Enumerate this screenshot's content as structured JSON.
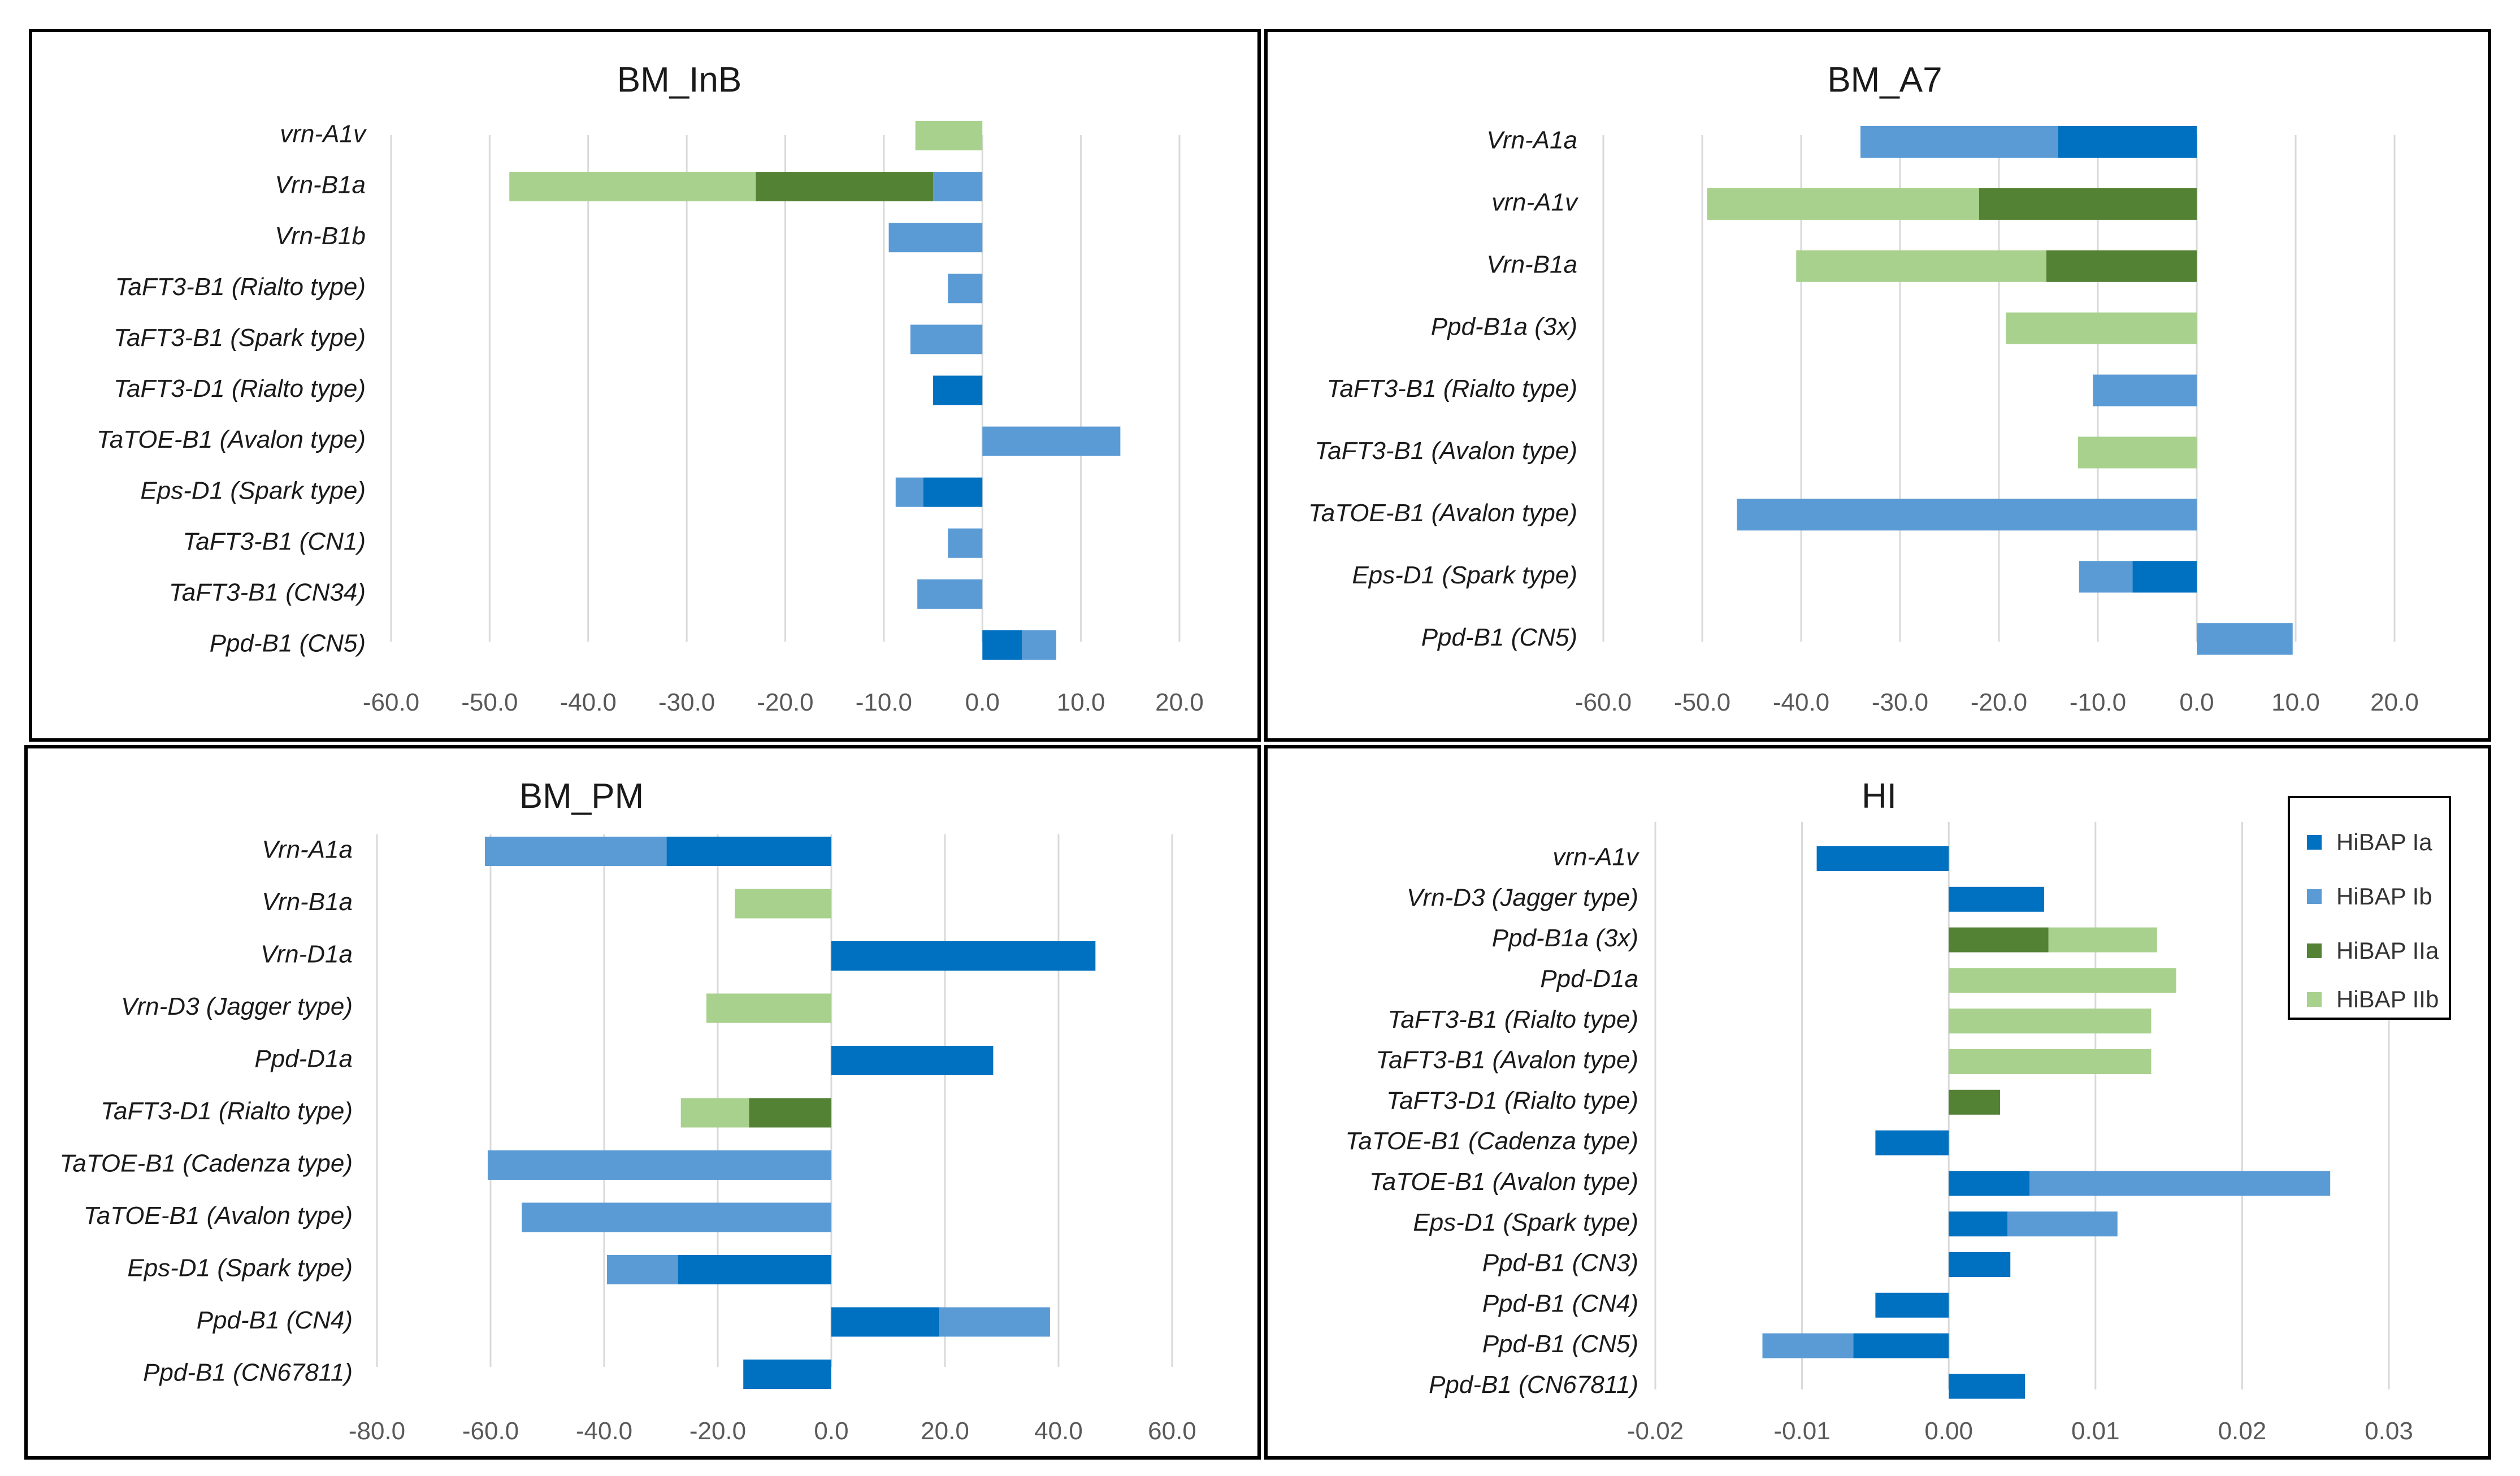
{
  "colors": {
    "HiBAP Ia": "#0070c0",
    "HiBAP Ib": "#5b9bd5",
    "HiBAP IIa": "#548235",
    "HiBAP IIb": "#a9d18e"
  },
  "legend": {
    "items": [
      {
        "label": "HiBAP Ia"
      },
      {
        "label": "HiBAP Ib"
      },
      {
        "label": "HiBAP IIa"
      },
      {
        "label": "HiBAP IIb"
      }
    ]
  },
  "chart_data": [
    {
      "type": "bar",
      "orientation": "horizontal",
      "stacked": true,
      "title": "BM_InB",
      "xlim": [
        -60,
        20
      ],
      "ticks": [
        -60,
        -50,
        -40,
        -30,
        -20,
        -10,
        0,
        10,
        20
      ],
      "tick_labels": [
        "-60.0",
        "-50.0",
        "-40.0",
        "-30.0",
        "-20.0",
        "-10.0",
        "0.0",
        "10.0",
        "20.0"
      ],
      "categories": [
        "vrn-A1v",
        "Vrn-B1a",
        "Vrn-B1b",
        "TaFT3-B1 (Rialto type)",
        "TaFT3-B1 (Spark type)",
        "TaFT3-D1 (Rialto type)",
        "TaTOE-B1 (Avalon type)",
        "Eps-D1 (Spark type)",
        "TaFT3-B1 (CN1)",
        "TaFT3-B1 (CN34)",
        "Ppd-B1 (CN5)"
      ],
      "series": [
        {
          "name": "HiBAP Ia",
          "values": [
            0,
            0,
            0,
            0,
            0,
            -5.0,
            0,
            -6.0,
            0,
            0,
            4.0
          ]
        },
        {
          "name": "HiBAP Ib",
          "values": [
            0,
            -5.0,
            -9.5,
            -3.5,
            -7.3,
            0,
            14.0,
            -2.8,
            -3.5,
            -6.6,
            3.5
          ]
        },
        {
          "name": "HiBAP IIa",
          "values": [
            0,
            -18.0,
            0,
            0,
            0,
            0,
            0,
            0,
            0,
            0,
            0
          ]
        },
        {
          "name": "HiBAP IIb",
          "values": [
            -6.8,
            -25.0,
            0,
            0,
            0,
            0,
            0,
            0,
            0,
            0,
            0
          ]
        }
      ]
    },
    {
      "type": "bar",
      "orientation": "horizontal",
      "stacked": true,
      "title": "BM_A7",
      "xlim": [
        -60,
        20
      ],
      "ticks": [
        -60,
        -50,
        -40,
        -30,
        -20,
        -10,
        0,
        10,
        20
      ],
      "tick_labels": [
        "-60.0",
        "-50.0",
        "-40.0",
        "-30.0",
        "-20.0",
        "-10.0",
        "0.0",
        "10.0",
        "20.0"
      ],
      "categories": [
        "Vrn-A1a",
        "vrn-A1v",
        "Vrn-B1a",
        "Ppd-B1a (3x)",
        "TaFT3-B1 (Rialto type)",
        "TaFT3-B1 (Avalon type)",
        "TaTOE-B1 (Avalon type)",
        "Eps-D1 (Spark type)",
        "Ppd-B1 (CN5)"
      ],
      "series": [
        {
          "name": "HiBAP Ia",
          "values": [
            -14.0,
            0,
            0,
            0,
            0,
            0,
            0,
            -6.5,
            0
          ]
        },
        {
          "name": "HiBAP Ib",
          "values": [
            -20.0,
            0,
            0,
            0,
            -10.5,
            0,
            -46.5,
            -5.4,
            9.7
          ]
        },
        {
          "name": "HiBAP IIa",
          "values": [
            0,
            -22.0,
            -15.2,
            0,
            0,
            0,
            0,
            0,
            0
          ]
        },
        {
          "name": "HiBAP IIb",
          "values": [
            0,
            -27.5,
            -25.3,
            -19.3,
            0,
            -12.0,
            0,
            0,
            0
          ]
        }
      ]
    },
    {
      "type": "bar",
      "orientation": "horizontal",
      "stacked": true,
      "title": "BM_PM",
      "xlim": [
        -80,
        60
      ],
      "ticks": [
        -80,
        -60,
        -40,
        -20,
        0,
        20,
        40,
        60
      ],
      "tick_labels": [
        "-80.0",
        "-60.0",
        "-40.0",
        "-20.0",
        "0.0",
        "20.0",
        "40.0",
        "60.0"
      ],
      "categories": [
        "Vrn-A1a",
        "Vrn-B1a",
        "Vrn-D1a",
        "Vrn-D3 (Jagger type)",
        "Ppd-D1a",
        "TaFT3-D1 (Rialto type)",
        "TaTOE-B1 (Cadenza type)",
        "TaTOE-B1 (Avalon type)",
        "Eps-D1 (Spark type)",
        "Ppd-B1 (CN4)",
        "Ppd-B1 (CN67811)"
      ],
      "series": [
        {
          "name": "HiBAP Ia",
          "values": [
            -29.0,
            0,
            46.5,
            0,
            28.5,
            0,
            0,
            0,
            -27.0,
            19.0,
            -15.5
          ]
        },
        {
          "name": "HiBAP Ib",
          "values": [
            -32.0,
            0,
            0,
            0,
            0,
            0,
            -60.5,
            -54.5,
            -12.5,
            19.5,
            0
          ]
        },
        {
          "name": "HiBAP IIa",
          "values": [
            0,
            0,
            0,
            0,
            0,
            -14.5,
            0,
            0,
            0,
            0,
            0
          ]
        },
        {
          "name": "HiBAP IIb",
          "values": [
            0,
            -17.0,
            0,
            -22.0,
            0,
            -12.0,
            0,
            0,
            0,
            0,
            0
          ]
        }
      ]
    },
    {
      "type": "bar",
      "orientation": "horizontal",
      "stacked": true,
      "title": "HI",
      "xlim": [
        -0.02,
        0.03
      ],
      "ticks": [
        -0.02,
        -0.01,
        0,
        0.01,
        0.02,
        0.03
      ],
      "tick_labels": [
        "-0.02",
        "-0.01",
        "0.00",
        "0.01",
        "0.02",
        "0.03"
      ],
      "legend_position": "top-right",
      "categories": [
        "vrn-A1v",
        "Vrn-D3 (Jagger type)",
        "Ppd-B1a (3x)",
        "Ppd-D1a",
        "TaFT3-B1 (Rialto type)",
        "TaFT3-B1 (Avalon type)",
        "TaFT3-D1 (Rialto type)",
        "TaTOE-B1 (Cadenza type)",
        "TaTOE-B1 (Avalon type)",
        "Eps-D1 (Spark type)",
        "Ppd-B1 (CN3)",
        "Ppd-B1 (CN4)",
        "Ppd-B1 (CN5)",
        "Ppd-B1 (CN67811)"
      ],
      "series": [
        {
          "name": "HiBAP Ia",
          "values": [
            -0.009,
            0.0065,
            0,
            0,
            0,
            0,
            0,
            -0.005,
            0.0055,
            0.004,
            0.0042,
            -0.005,
            -0.0065,
            0.0052
          ]
        },
        {
          "name": "HiBAP Ib",
          "values": [
            0,
            0,
            0,
            0,
            0,
            0,
            0,
            0,
            0.0205,
            0.0075,
            0,
            0,
            -0.0062,
            0
          ]
        },
        {
          "name": "HiBAP IIa",
          "values": [
            0,
            0,
            0.0068,
            0,
            0,
            0,
            0.0035,
            0,
            0,
            0,
            0,
            0,
            0,
            0
          ]
        },
        {
          "name": "HiBAP IIb",
          "values": [
            0,
            0,
            0.0074,
            0.0155,
            0.0138,
            0.0138,
            0,
            0,
            0,
            0,
            0,
            0,
            0,
            0
          ]
        }
      ]
    }
  ]
}
